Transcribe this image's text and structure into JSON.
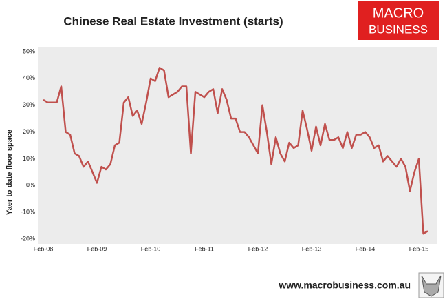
{
  "chart_data": {
    "type": "line",
    "title": "Chinese Real Estate Investment (starts)",
    "y_label": "Yaer to date floor space",
    "logo_line1": "MACRO",
    "logo_line2": "BUSINESS",
    "source": "www.macrobusiness.com.au",
    "categories": [
      "Feb-08",
      null,
      null,
      null,
      null,
      null,
      null,
      null,
      null,
      null,
      null,
      null,
      "Feb-09",
      null,
      null,
      null,
      null,
      null,
      null,
      null,
      null,
      null,
      null,
      null,
      "Feb-10",
      null,
      null,
      null,
      null,
      null,
      null,
      null,
      null,
      null,
      null,
      null,
      "Feb-11",
      null,
      null,
      null,
      null,
      null,
      null,
      null,
      null,
      null,
      null,
      null,
      "Feb-12",
      null,
      null,
      null,
      null,
      null,
      null,
      null,
      null,
      null,
      null,
      null,
      "Feb-13",
      null,
      null,
      null,
      null,
      null,
      null,
      null,
      null,
      null,
      null,
      null,
      "Feb-14",
      null,
      null,
      null,
      null,
      null,
      null,
      null,
      null,
      null,
      null,
      null,
      "Feb-15",
      null,
      null
    ],
    "series": [
      {
        "color": "#c0504d",
        "values": [
          32,
          31,
          31,
          31,
          37,
          20,
          19,
          12,
          11,
          7,
          9,
          5,
          1,
          7,
          6,
          8,
          15,
          16,
          31,
          33,
          26,
          28,
          23,
          31,
          40,
          39,
          44,
          43,
          33,
          34,
          35,
          37,
          37,
          12,
          35,
          34,
          33,
          35,
          36,
          27,
          36,
          32,
          25,
          25,
          20,
          20,
          18,
          15,
          12,
          30,
          20,
          8,
          18,
          12,
          9,
          16,
          14,
          15,
          28,
          21,
          13,
          22,
          15,
          23,
          17,
          17,
          18,
          14,
          20,
          14,
          19,
          19,
          20,
          18,
          14,
          15,
          9,
          11,
          9,
          7,
          10,
          7,
          -2,
          5,
          10,
          -18,
          -17
        ]
      }
    ],
    "ylim": [
      -20,
      50
    ],
    "yticks": [
      {
        "value": -20,
        "label": "-20%"
      },
      {
        "value": -10,
        "label": "-10%"
      },
      {
        "value": 0,
        "label": "0%"
      },
      {
        "value": 10,
        "label": "10%"
      },
      {
        "value": 20,
        "label": "20%"
      },
      {
        "value": 30,
        "label": "30%"
      },
      {
        "value": 40,
        "label": "40%"
      },
      {
        "value": 50,
        "label": "50%"
      }
    ],
    "grid": false
  }
}
